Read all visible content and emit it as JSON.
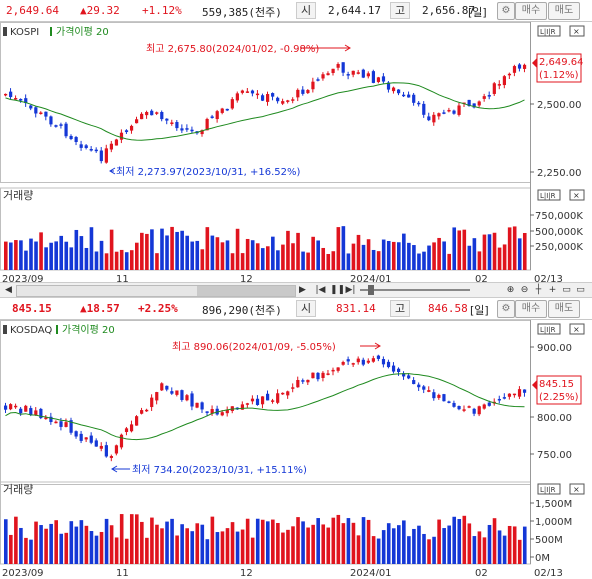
{
  "kospi": {
    "header": {
      "price": "2,649.64",
      "change": "▲29.32",
      "pct": "+1.12%",
      "volume": "559,385(천주)",
      "open_label": "시",
      "open": "2,644.17",
      "high_label": "고",
      "high": "2,656.87",
      "period": "[일]",
      "buy": "매수",
      "sell": "매도"
    },
    "name": "KOSPI",
    "ma_label": "가격이평 20",
    "high_note": "최고 2,675.80(2024/01/02, -0.98%)",
    "low_note": "최저 2,273.97(2023/10/31, +16.52%)",
    "last_price": "2,649.64",
    "last_pct": "(1.12%)",
    "y_ticks": [
      "2,500.00",
      "2,250.00"
    ],
    "vol_title": "거래량",
    "vol_ticks": [
      "750,000K",
      "500,000K",
      "250,000K"
    ]
  },
  "kosdaq": {
    "header": {
      "price": "845.15",
      "change": "▲18.57",
      "pct": "+2.25%",
      "volume": "896,290(천주)",
      "open_label": "시",
      "open": "831.14",
      "high_label": "고",
      "high": "846.58",
      "period": "[일]",
      "buy": "매수",
      "sell": "매도"
    },
    "name": "KOSDAQ",
    "ma_label": "가격이평 20",
    "high_note": "최고 890.06(2024/01/09, -5.05%)",
    "low_note": "최저 734.20(2023/10/31, +15.11%)",
    "last_price": "845.15",
    "last_pct": "(2.25%)",
    "y_ticks": [
      "900.00",
      "800.00",
      "750.00"
    ],
    "vol_title": "거래량",
    "vol_ticks": [
      "1,500M",
      "1,000M",
      "500M",
      "0M"
    ]
  },
  "x_labels": [
    "2023/09",
    "11",
    "12",
    "2024/01",
    "02",
    "02/13"
  ],
  "toolbar": {
    "lir": "L|I|R",
    "close": "×",
    "icons": [
      "⊕",
      "⊖",
      "┼",
      "+",
      "▭",
      "▭"
    ]
  },
  "colors": {
    "up": "#e0141e",
    "down": "#1437d6",
    "ma": "#1f8a1f"
  }
}
